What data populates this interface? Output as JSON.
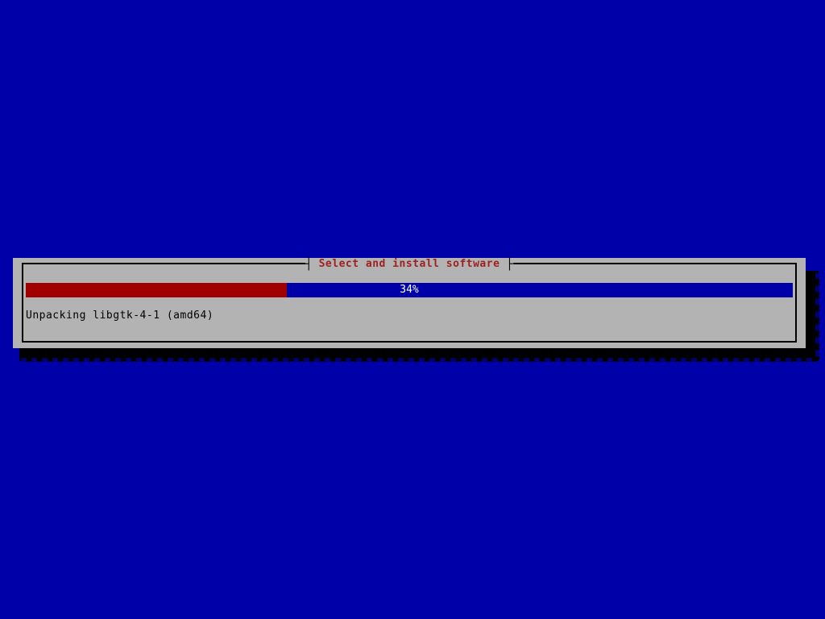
{
  "colors": {
    "screen_bg": "#0000a8",
    "dialog_bg": "#b3b3b3",
    "title_red": "#9e2121",
    "bar_fill_red": "#a00000",
    "bar_empty_blue": "#0000a8",
    "bar_label_white": "#ffffff",
    "status_text_black": "#000000"
  },
  "dialog": {
    "title": "Select and install software",
    "title_left_tick": "┤",
    "title_right_tick": "├",
    "progress": {
      "percent": 34,
      "label": "34%"
    },
    "status_text": "Unpacking libgtk-4-1 (amd64)"
  }
}
